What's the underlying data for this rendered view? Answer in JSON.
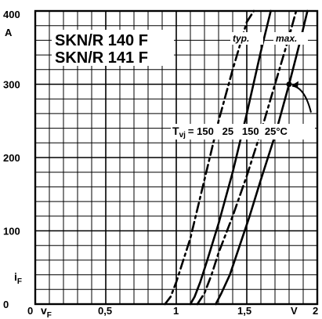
{
  "chart_data": {
    "type": "line",
    "title": "SKN/R 140 F",
    "subtitle": "SKN/R 141 F",
    "xlabel": "v",
    "xlabel_sub": "F",
    "x_unit": "V",
    "ylabel": "i",
    "ylabel_sub": "F",
    "y_unit": "A",
    "xlim": [
      0,
      2
    ],
    "ylim": [
      0,
      400
    ],
    "x_ticks": [
      {
        "value": 0,
        "label": "0"
      },
      {
        "value": 0.5,
        "label": "0,5"
      },
      {
        "value": 1,
        "label": "1"
      },
      {
        "value": 1.5,
        "label": "1,5"
      },
      {
        "value": 2,
        "label": "2"
      }
    ],
    "y_ticks": [
      {
        "value": 0,
        "label": "0"
      },
      {
        "value": 100,
        "label": "100"
      },
      {
        "value": 200,
        "label": "200"
      },
      {
        "value": 300,
        "label": "300"
      },
      {
        "value": 400,
        "label": "400"
      }
    ],
    "grid": true,
    "legend": {
      "typ": "typ.",
      "max": "max.",
      "tvj_label": "T",
      "tvj_sub": "vj",
      "tvj_values": "= 150   25   150  25",
      "tvj_unit": "°C"
    },
    "series": [
      {
        "name": "150",
        "style": "dashed",
        "x": [
          0.92,
          0.96,
          1.0,
          1.05,
          1.1,
          1.2,
          1.3,
          1.4,
          1.5,
          1.55
        ],
        "y": [
          0,
          10,
          30,
          60,
          90,
          170,
          250,
          320,
          385,
          400
        ]
      },
      {
        "name": "25",
        "style": "solid",
        "x": [
          1.1,
          1.13,
          1.17,
          1.22,
          1.3,
          1.4,
          1.5,
          1.6,
          1.67
        ],
        "y": [
          0,
          10,
          30,
          60,
          110,
          180,
          260,
          345,
          400
        ]
      },
      {
        "name": "150",
        "style": "dashed",
        "x": [
          1.15,
          1.2,
          1.25,
          1.3,
          1.4,
          1.5,
          1.6,
          1.7,
          1.8,
          1.85
        ],
        "y": [
          0,
          15,
          40,
          70,
          120,
          175,
          235,
          300,
          365,
          400
        ]
      },
      {
        "name": "25",
        "style": "solid",
        "x": [
          1.28,
          1.32,
          1.38,
          1.45,
          1.52,
          1.6,
          1.7,
          1.8,
          1.88,
          1.93
        ],
        "y": [
          0,
          15,
          40,
          80,
          120,
          170,
          230,
          300,
          360,
          400
        ]
      }
    ],
    "marker": {
      "x": 1.8,
      "y": 300
    }
  }
}
